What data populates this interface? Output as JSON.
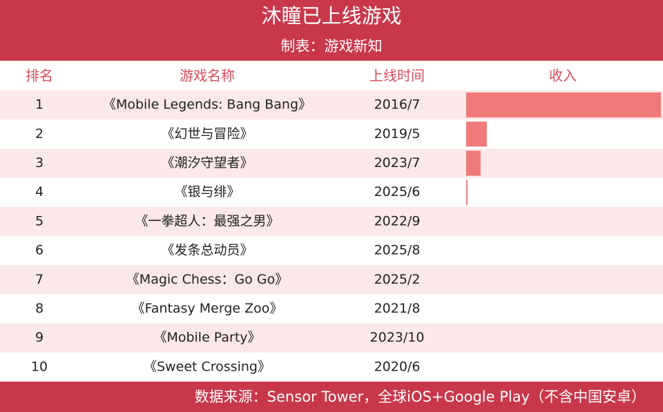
{
  "header": {
    "title": "沐瞳已上线游戏",
    "subtitle": "制表：游戏新知"
  },
  "table": {
    "columns": [
      "排名",
      "游戏名称",
      "上线时间",
      "收入"
    ],
    "rows": [
      [
        "1",
        "《Mobile Legends: Bang Bang》",
        "2016/7"
      ],
      [
        "2",
        "《幻世与冒险》",
        "2019/5"
      ],
      [
        "3",
        "《潮汐守望者》",
        "2023/7"
      ],
      [
        "4",
        "《银与绯》",
        "2025/6"
      ],
      [
        "5",
        "《一拳超人：最强之男》",
        "2022/9"
      ],
      [
        "6",
        "《发条总动员》",
        "2025/8"
      ],
      [
        "7",
        "《Magic Chess：Go Go》",
        "2025/2"
      ],
      [
        "8",
        "《Fantasy Merge Zoo》",
        "2021/8"
      ],
      [
        "9",
        "《Mobile Party》",
        "2023/10"
      ],
      [
        "10",
        "《Sweet Crossing》",
        "2020/6"
      ]
    ],
    "revenue": {
      "type": "bar",
      "xlim": [
        0,
        100
      ],
      "color": "#f07a7a",
      "values": [
        100,
        10.6,
        7.4,
        0.7,
        0,
        0,
        0,
        0,
        0,
        0
      ]
    }
  },
  "footer": {
    "source": "数据来源：Sensor Tower，全球iOS+Google Play（不含中国安卓）"
  }
}
